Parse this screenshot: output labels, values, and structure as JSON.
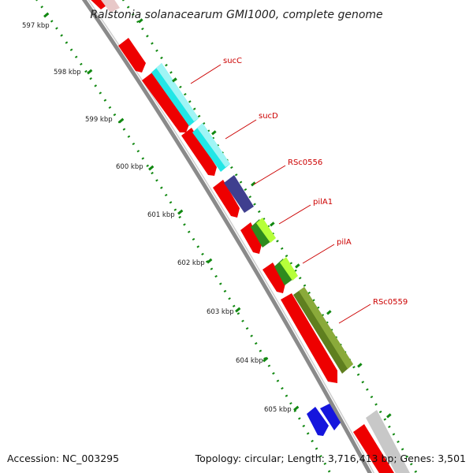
{
  "title": "Ralstonia solanacearum GMI1000, complete genome",
  "accession": "Accession: NC_003295",
  "summary": "Topology: circular; Length: 3,716,413 bp; Genes: 3,501",
  "ticks": [
    "597 kbp",
    "598 kbp",
    "599 kbp",
    "600 kbp",
    "601 kbp",
    "602 kbp",
    "603 kbp",
    "604 kbp",
    "605 kbp"
  ],
  "gene_labels": [
    "sucC",
    "sucD",
    "RSc0556",
    "pilA1",
    "pilA",
    "RSc0559"
  ],
  "colors": {
    "backbone": "#8a8a8a",
    "cds_red": "#ee0000",
    "sucC": "#22e6e6",
    "sucD": "#22e6e6",
    "RSc0556": "#3f3f8f",
    "pilA1": "#66cc11",
    "pilA": "#66cc11",
    "RSc0559": "#5f7f1f",
    "blue_feature": "#1515dd",
    "grey_feature": "#c8c8c8",
    "tick_dots": "#118811",
    "label_line": "#cc0000"
  }
}
